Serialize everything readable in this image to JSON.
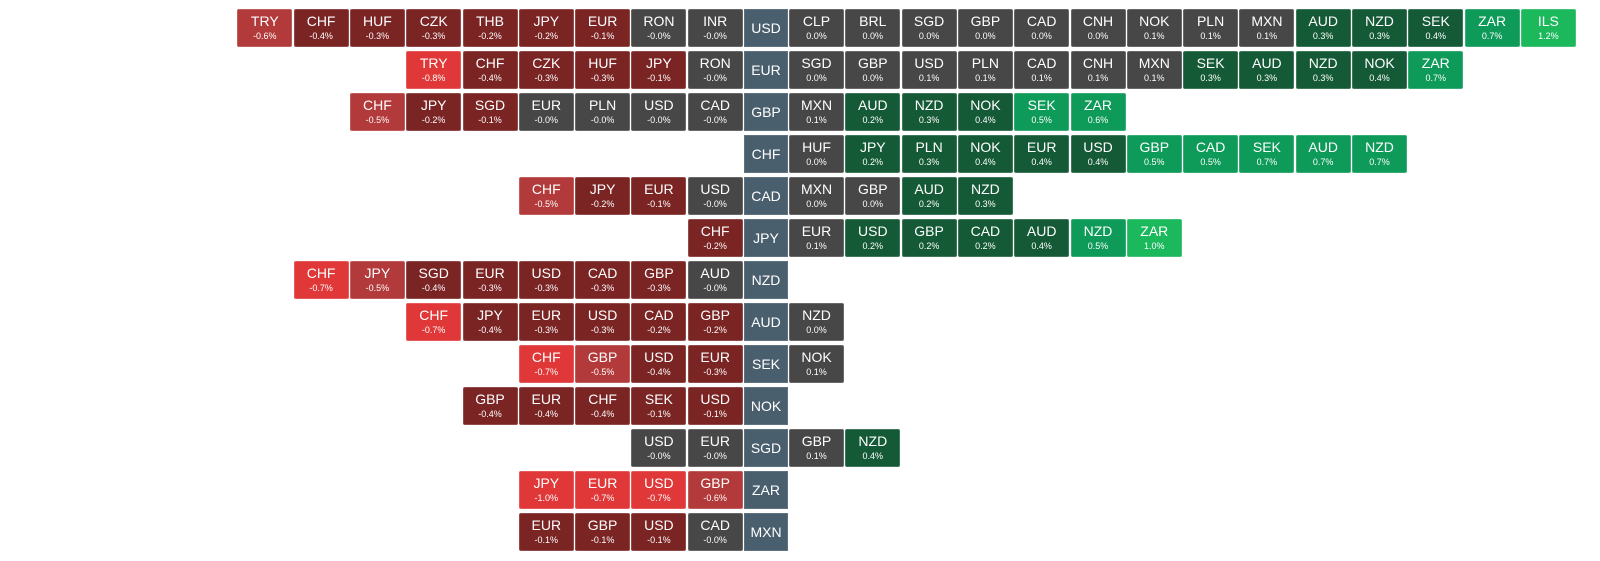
{
  "chart_data": {
    "type": "heatmap",
    "colors": {
      "strong_negative": "#e03838",
      "negative": "#b33a3a",
      "mild_negative": "#7a2424",
      "neutral": "#474747",
      "mild_positive": "#155a36",
      "positive": "#0e9a58",
      "strong_positive": "#1bb85c",
      "base": "#4a5f6e"
    },
    "rows": [
      {
        "base": "USD",
        "left": [
          [
            "TRY",
            -0.6,
            "-0.6%"
          ],
          [
            "CHF",
            -0.4,
            "-0.4%"
          ],
          [
            "HUF",
            -0.3,
            "-0.3%"
          ],
          [
            "CZK",
            -0.3,
            "-0.3%"
          ],
          [
            "THB",
            -0.2,
            "-0.2%"
          ],
          [
            "JPY",
            -0.2,
            "-0.2%"
          ],
          [
            "EUR",
            -0.1,
            "-0.1%"
          ],
          [
            "RON",
            0,
            "-0.0%"
          ],
          [
            "INR",
            0,
            "-0.0%"
          ]
        ],
        "right": [
          [
            "CLP",
            0,
            "0.0%"
          ],
          [
            "BRL",
            0,
            "0.0%"
          ],
          [
            "SGD",
            0,
            "0.0%"
          ],
          [
            "GBP",
            0,
            "0.0%"
          ],
          [
            "CAD",
            0,
            "0.0%"
          ],
          [
            "CNH",
            0,
            "0.0%"
          ],
          [
            "NOK",
            0.1,
            "0.1%"
          ],
          [
            "PLN",
            0.1,
            "0.1%"
          ],
          [
            "MXN",
            0.1,
            "0.1%"
          ],
          [
            "AUD",
            0.3,
            "0.3%"
          ],
          [
            "NZD",
            0.3,
            "0.3%"
          ],
          [
            "SEK",
            0.4,
            "0.4%"
          ],
          [
            "ZAR",
            0.7,
            "0.7%"
          ],
          [
            "ILS",
            1.2,
            "1.2%"
          ]
        ]
      },
      {
        "base": "EUR",
        "left": [
          [
            "TRY",
            -0.8,
            "-0.8%"
          ],
          [
            "CHF",
            -0.4,
            "-0.4%"
          ],
          [
            "CZK",
            -0.3,
            "-0.3%"
          ],
          [
            "HUF",
            -0.3,
            "-0.3%"
          ],
          [
            "JPY",
            -0.1,
            "-0.1%"
          ],
          [
            "RON",
            0,
            "-0.0%"
          ]
        ],
        "right": [
          [
            "SGD",
            0,
            "0.0%"
          ],
          [
            "GBP",
            0,
            "0.0%"
          ],
          [
            "USD",
            0.1,
            "0.1%"
          ],
          [
            "PLN",
            0.1,
            "0.1%"
          ],
          [
            "CAD",
            0.1,
            "0.1%"
          ],
          [
            "CNH",
            0.1,
            "0.1%"
          ],
          [
            "MXN",
            0.1,
            "0.1%"
          ],
          [
            "SEK",
            0.3,
            "0.3%"
          ],
          [
            "AUD",
            0.3,
            "0.3%"
          ],
          [
            "NZD",
            0.3,
            "0.3%"
          ],
          [
            "NOK",
            0.4,
            "0.4%"
          ],
          [
            "ZAR",
            0.7,
            "0.7%"
          ]
        ]
      },
      {
        "base": "GBP",
        "left": [
          [
            "CHF",
            -0.5,
            "-0.5%"
          ],
          [
            "JPY",
            -0.2,
            "-0.2%"
          ],
          [
            "SGD",
            -0.1,
            "-0.1%"
          ],
          [
            "EUR",
            0,
            "-0.0%"
          ],
          [
            "PLN",
            0,
            "-0.0%"
          ],
          [
            "USD",
            0,
            "-0.0%"
          ],
          [
            "CAD",
            0,
            "-0.0%"
          ]
        ],
        "right": [
          [
            "MXN",
            0.1,
            "0.1%"
          ],
          [
            "AUD",
            0.2,
            "0.2%"
          ],
          [
            "NZD",
            0.3,
            "0.3%"
          ],
          [
            "NOK",
            0.4,
            "0.4%"
          ],
          [
            "SEK",
            0.5,
            "0.5%"
          ],
          [
            "ZAR",
            0.6,
            "0.6%"
          ]
        ]
      },
      {
        "base": "CHF",
        "left": [],
        "right": [
          [
            "HUF",
            0,
            "0.0%"
          ],
          [
            "JPY",
            0.2,
            "0.2%"
          ],
          [
            "PLN",
            0.3,
            "0.3%"
          ],
          [
            "NOK",
            0.4,
            "0.4%"
          ],
          [
            "EUR",
            0.4,
            "0.4%"
          ],
          [
            "USD",
            0.4,
            "0.4%"
          ],
          [
            "GBP",
            0.5,
            "0.5%"
          ],
          [
            "CAD",
            0.5,
            "0.5%"
          ],
          [
            "SEK",
            0.7,
            "0.7%"
          ],
          [
            "AUD",
            0.7,
            "0.7%"
          ],
          [
            "NZD",
            0.7,
            "0.7%"
          ]
        ]
      },
      {
        "base": "CAD",
        "left": [
          [
            "CHF",
            -0.5,
            "-0.5%"
          ],
          [
            "JPY",
            -0.2,
            "-0.2%"
          ],
          [
            "EUR",
            -0.1,
            "-0.1%"
          ],
          [
            "USD",
            0,
            "-0.0%"
          ]
        ],
        "right": [
          [
            "MXN",
            0,
            "0.0%"
          ],
          [
            "GBP",
            0,
            "0.0%"
          ],
          [
            "AUD",
            0.2,
            "0.2%"
          ],
          [
            "NZD",
            0.3,
            "0.3%"
          ]
        ]
      },
      {
        "base": "JPY",
        "left": [
          [
            "CHF",
            -0.2,
            "-0.2%"
          ]
        ],
        "right": [
          [
            "EUR",
            0.1,
            "0.1%"
          ],
          [
            "USD",
            0.2,
            "0.2%"
          ],
          [
            "GBP",
            0.2,
            "0.2%"
          ],
          [
            "CAD",
            0.2,
            "0.2%"
          ],
          [
            "AUD",
            0.4,
            "0.4%"
          ],
          [
            "NZD",
            0.5,
            "0.5%"
          ],
          [
            "ZAR",
            1.0,
            "1.0%"
          ]
        ]
      },
      {
        "base": "NZD",
        "left": [
          [
            "CHF",
            -0.7,
            "-0.7%"
          ],
          [
            "JPY",
            -0.5,
            "-0.5%"
          ],
          [
            "SGD",
            -0.4,
            "-0.4%"
          ],
          [
            "EUR",
            -0.3,
            "-0.3%"
          ],
          [
            "USD",
            -0.3,
            "-0.3%"
          ],
          [
            "CAD",
            -0.3,
            "-0.3%"
          ],
          [
            "GBP",
            -0.3,
            "-0.3%"
          ],
          [
            "AUD",
            0,
            "-0.0%"
          ]
        ],
        "right": []
      },
      {
        "base": "AUD",
        "left": [
          [
            "CHF",
            -0.7,
            "-0.7%"
          ],
          [
            "JPY",
            -0.4,
            "-0.4%"
          ],
          [
            "EUR",
            -0.3,
            "-0.3%"
          ],
          [
            "USD",
            -0.3,
            "-0.3%"
          ],
          [
            "CAD",
            -0.2,
            "-0.2%"
          ],
          [
            "GBP",
            -0.2,
            "-0.2%"
          ]
        ],
        "right": [
          [
            "NZD",
            0,
            "0.0%"
          ]
        ]
      },
      {
        "base": "SEK",
        "left": [
          [
            "CHF",
            -0.7,
            "-0.7%"
          ],
          [
            "GBP",
            -0.5,
            "-0.5%"
          ],
          [
            "USD",
            -0.4,
            "-0.4%"
          ],
          [
            "EUR",
            -0.3,
            "-0.3%"
          ]
        ],
        "right": [
          [
            "NOK",
            0.1,
            "0.1%"
          ]
        ]
      },
      {
        "base": "NOK",
        "left": [
          [
            "GBP",
            -0.4,
            "-0.4%"
          ],
          [
            "EUR",
            -0.4,
            "-0.4%"
          ],
          [
            "CHF",
            -0.4,
            "-0.4%"
          ],
          [
            "SEK",
            -0.1,
            "-0.1%"
          ],
          [
            "USD",
            -0.1,
            "-0.1%"
          ]
        ],
        "right": []
      },
      {
        "base": "SGD",
        "left": [
          [
            "USD",
            0,
            "-0.0%"
          ],
          [
            "EUR",
            0,
            "-0.0%"
          ]
        ],
        "right": [
          [
            "GBP",
            0.1,
            "0.1%"
          ],
          [
            "NZD",
            0.4,
            "0.4%"
          ]
        ]
      },
      {
        "base": "ZAR",
        "left": [
          [
            "JPY",
            -1.0,
            "-1.0%"
          ],
          [
            "EUR",
            -0.7,
            "-0.7%"
          ],
          [
            "USD",
            -0.7,
            "-0.7%"
          ],
          [
            "GBP",
            -0.6,
            "-0.6%"
          ]
        ],
        "right": []
      },
      {
        "base": "MXN",
        "left": [
          [
            "EUR",
            -0.1,
            "-0.1%"
          ],
          [
            "GBP",
            -0.1,
            "-0.1%"
          ],
          [
            "USD",
            -0.1,
            "-0.1%"
          ],
          [
            "CAD",
            0,
            "-0.0%"
          ]
        ],
        "right": []
      }
    ]
  }
}
